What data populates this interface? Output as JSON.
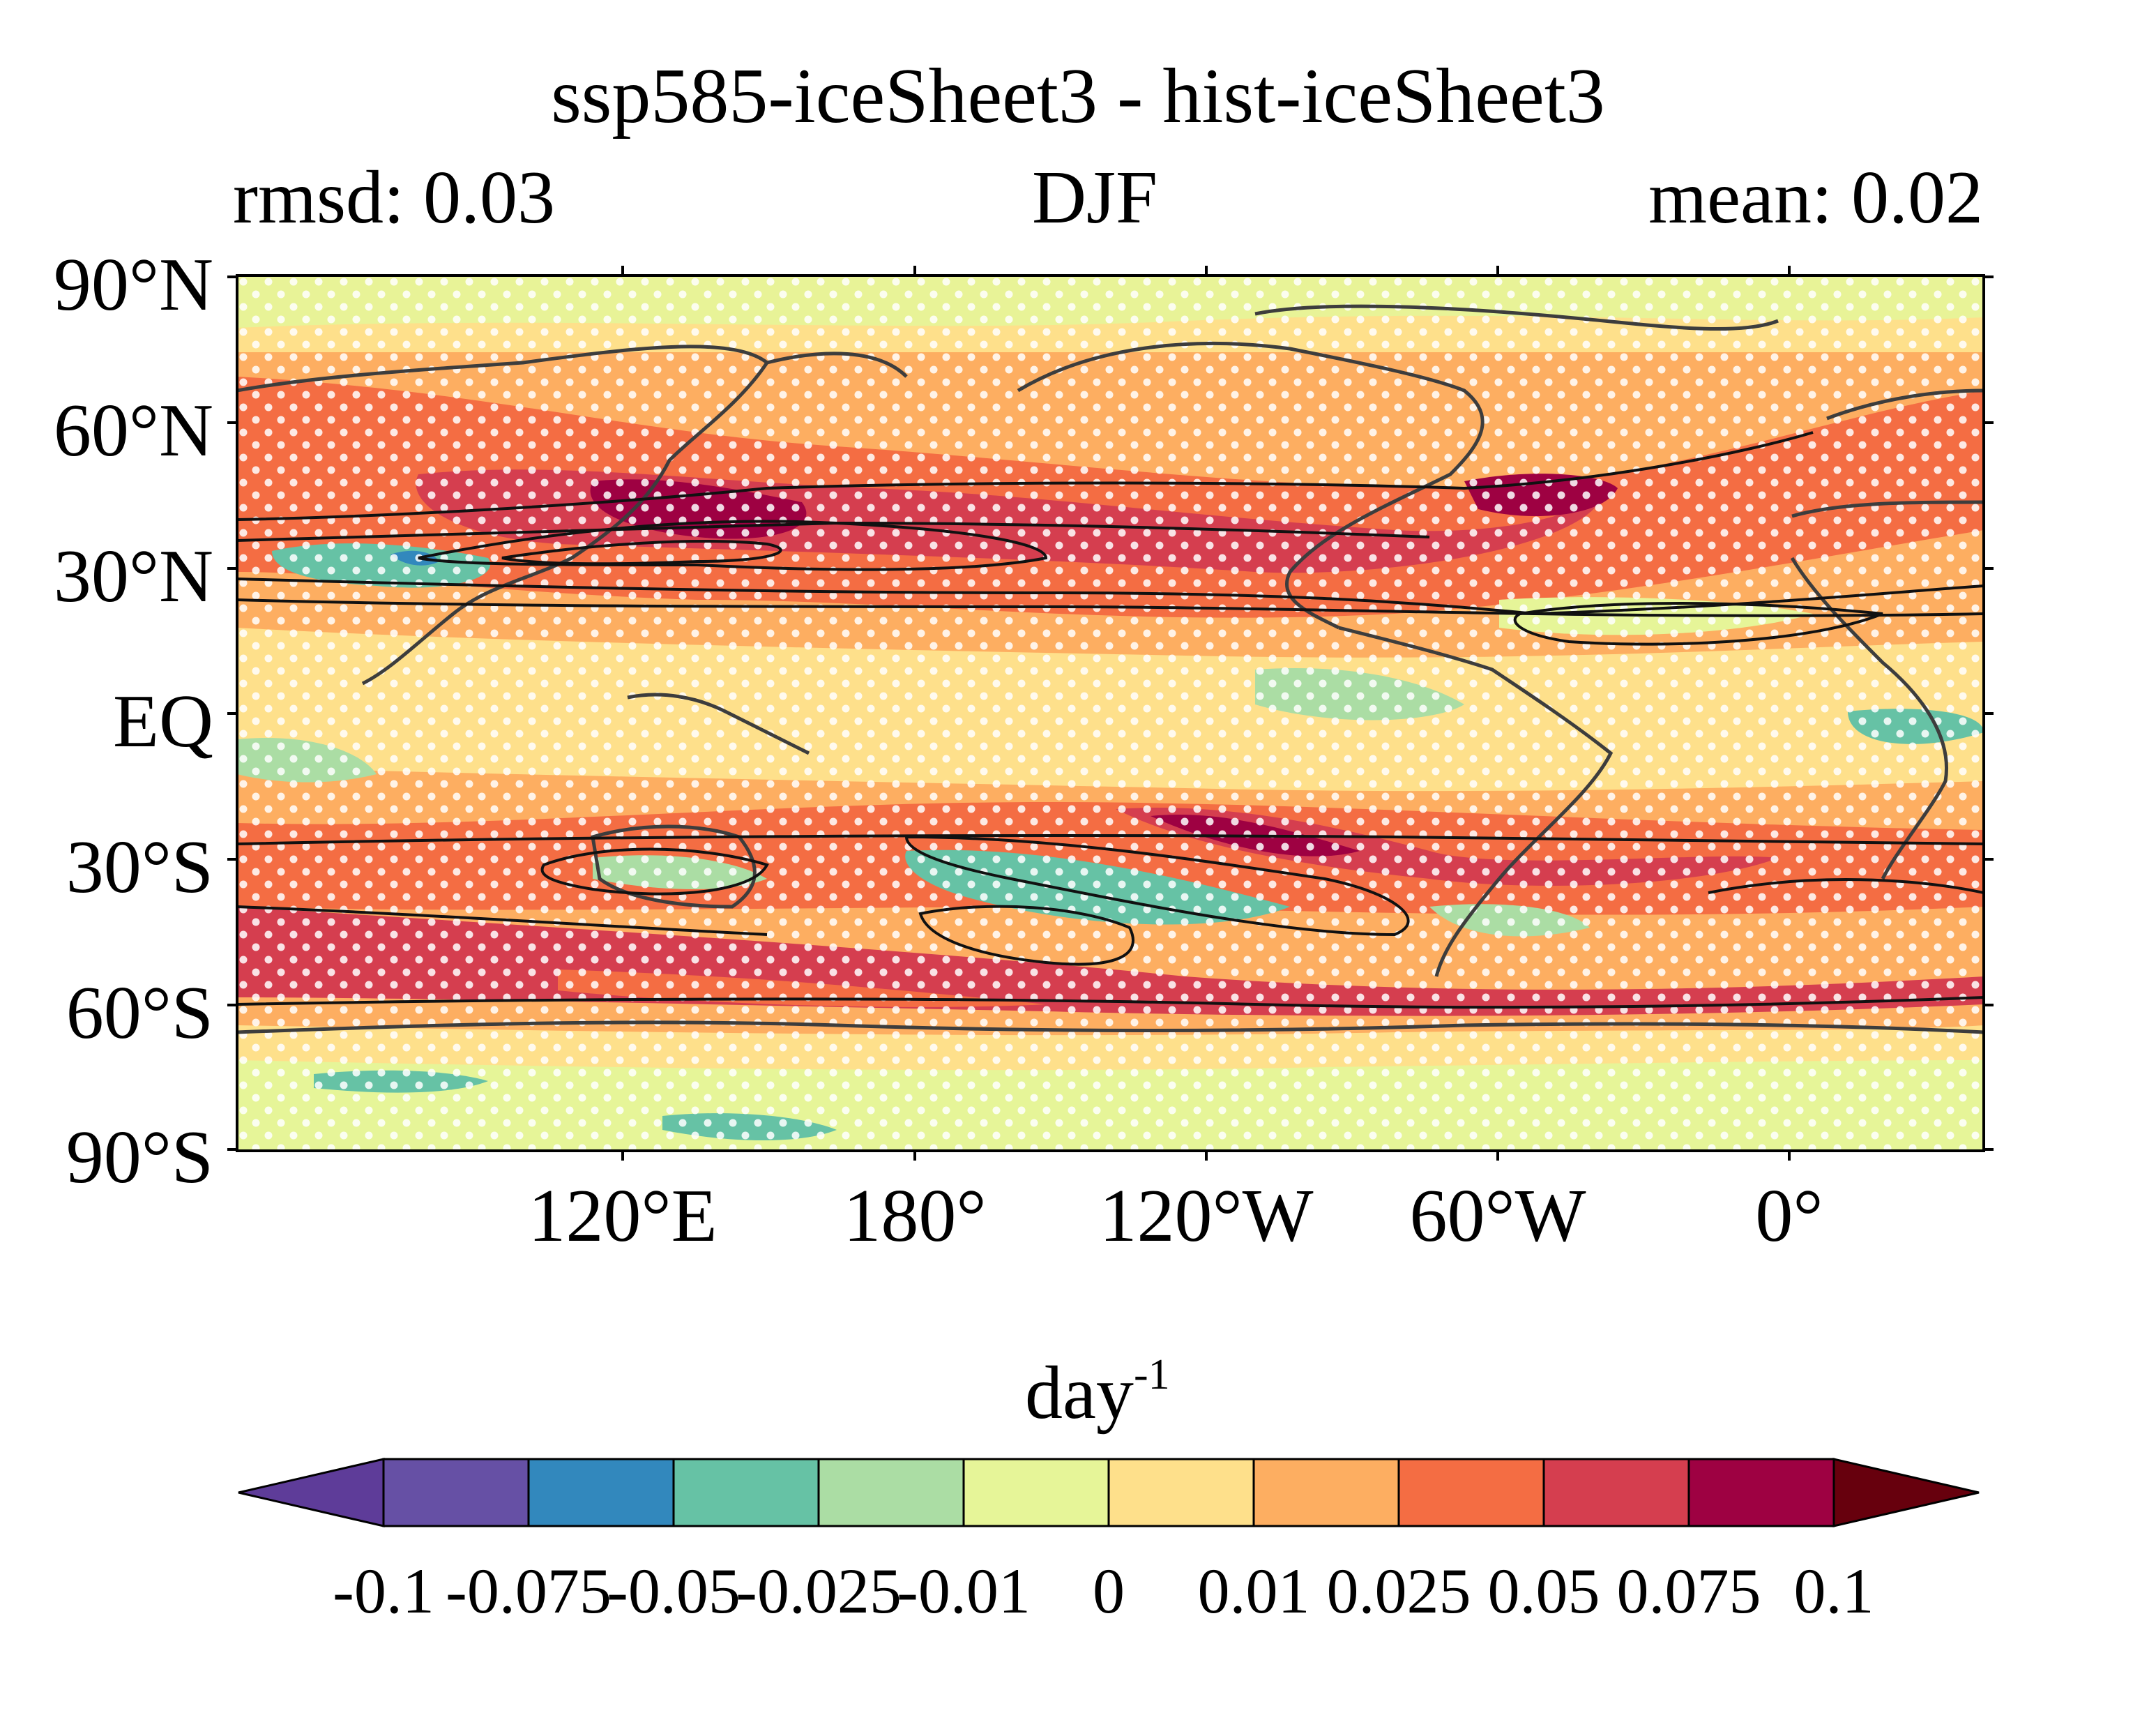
{
  "title": "ssp585-iceSheet3 - hist-iceSheet3",
  "stats": {
    "rmsd": "rmsd: 0.03",
    "season": "DJF",
    "mean": "mean: 0.02"
  },
  "lat_ticks": [
    "90°N",
    "60°N",
    "30°N",
    "EQ",
    "30°S",
    "60°S",
    "90°S"
  ],
  "lon_ticks": [
    "120°E",
    "180°",
    "120°W",
    "60°W",
    "0°"
  ],
  "colorbar": {
    "unit_base": "day",
    "unit_exp": "-1",
    "levels": [
      "-0.1",
      "-0.075",
      "-0.05",
      "-0.025",
      "-0.01",
      "0",
      "0.01",
      "0.025",
      "0.05",
      "0.075",
      "0.1"
    ],
    "colors": [
      "#5e3c99",
      "#6650a5",
      "#3288bd",
      "#66c2a5",
      "#abdda4",
      "#e6f598",
      "#fee08b",
      "#fdae61",
      "#f46d43",
      "#d53e4f",
      "#9e0142",
      "#67000d"
    ]
  }
}
